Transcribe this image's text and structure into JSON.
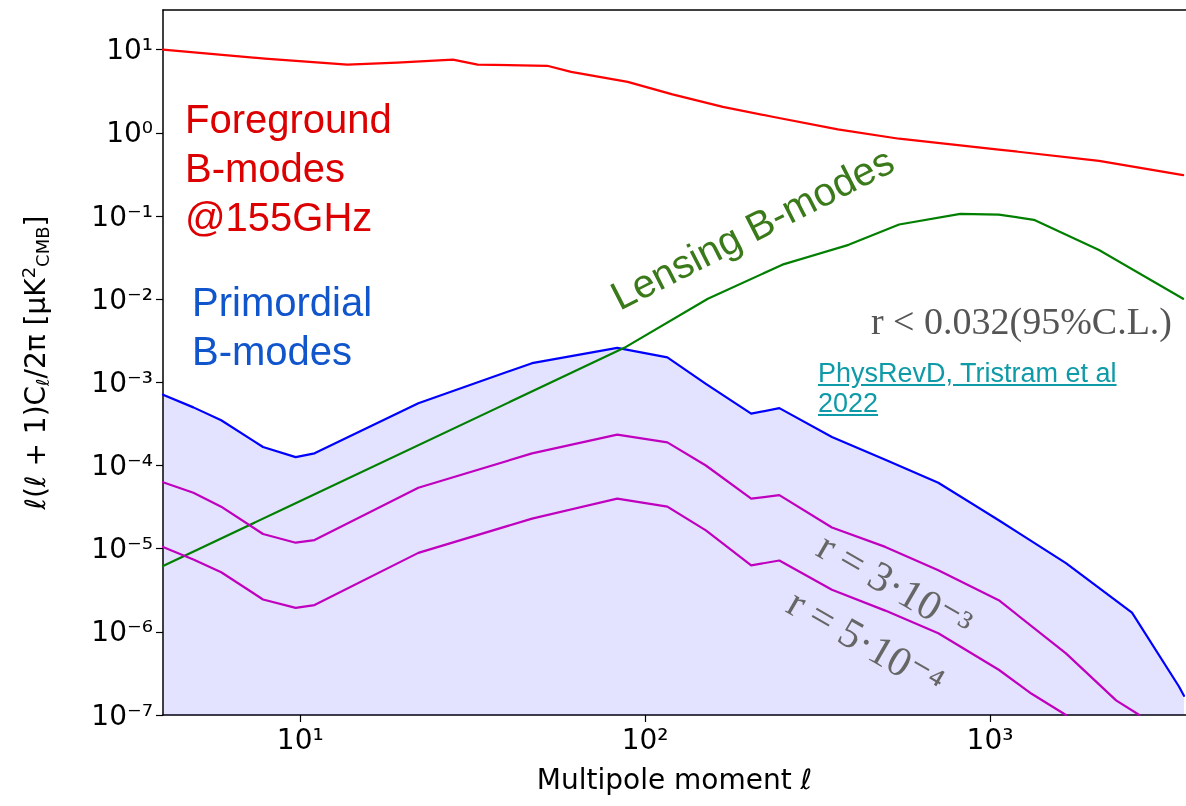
{
  "chart_data": {
    "type": "line",
    "xlabel": "Multipole moment ℓ",
    "ylabel": "ℓ(ℓ + 1)C$_{ℓ}$/2π [μK$^{2}$$_{CMB}$]",
    "log": "xy",
    "xlim": [
      4,
      3700
    ],
    "ylim": [
      1e-07,
      30
    ],
    "xticks": [
      {
        "value": 10,
        "label": "10¹"
      },
      {
        "value": 100,
        "label": "10²"
      },
      {
        "value": 1000,
        "label": "10³"
      }
    ],
    "yticks": [
      {
        "value": 1e-07,
        "label": "10⁻⁷"
      },
      {
        "value": 1e-06,
        "label": "10⁻⁶"
      },
      {
        "value": 1e-05,
        "label": "10⁻⁵"
      },
      {
        "value": 0.0001,
        "label": "10⁻⁴"
      },
      {
        "value": 0.001,
        "label": "10⁻³"
      },
      {
        "value": 0.01,
        "label": "10⁻²"
      },
      {
        "value": 0.1,
        "label": "10⁻¹"
      },
      {
        "value": 1,
        "label": "10⁰"
      },
      {
        "value": 10,
        "label": "10¹"
      }
    ],
    "grid": false,
    "legend": false,
    "marker": "none",
    "line_style": "solid",
    "annotations": [
      "r < 0.032(95%C.L.)",
      "PhysRevD, Tristram et al 2022"
    ],
    "series": [
      {
        "name": "Foreground B-modes @155GHz",
        "color": "#ff0000",
        "x": [
          4,
          7.9,
          13.7,
          19.1,
          27.7,
          32.7,
          52,
          61,
          89,
          120,
          168,
          234,
          362,
          545,
          1060,
          2070,
          3630
        ],
        "values": [
          10,
          7.8,
          6.6,
          7.0,
          7.6,
          6.6,
          6.4,
          5.4,
          4.1,
          2.9,
          2.05,
          1.56,
          1.1,
          0.85,
          0.63,
          0.46,
          0.31
        ]
      },
      {
        "name": "Lensing B-modes",
        "color": "#007f00",
        "x": [
          4,
          87,
          152,
          250,
          389,
          545,
          820,
          1060,
          1340,
          2070,
          3630
        ],
        "values": [
          6.2e-06,
          0.0026,
          0.0101,
          0.026,
          0.045,
          0.079,
          0.106,
          0.104,
          0.09,
          0.039,
          0.0101
        ]
      },
      {
        "name": "Primordial B-modes",
        "type": "area",
        "color": "#0000ff",
        "x": [
          4,
          4.9,
          5.9,
          7.8,
          9.7,
          11,
          22,
          47,
          83,
          116,
          150,
          203,
          245,
          348,
          497,
          708,
          1060,
          1660,
          2580,
          3530,
          3650
        ],
        "values": [
          0.00071,
          0.0005,
          0.00035,
          0.000167,
          0.000126,
          0.00014,
          0.00056,
          0.0017,
          0.0026,
          0.002,
          0.00096,
          0.00042,
          0.00049,
          0.00022,
          0.000117,
          6.2e-05,
          2.2e-05,
          6.7e-06,
          1.7e-06,
          2.2e-07,
          1.7e-07
        ]
      },
      {
        "name": "r = 3·10⁻³",
        "color": "#bf00bf",
        "x": [
          4,
          4.9,
          5.9,
          7.8,
          9.7,
          11,
          22,
          47,
          83,
          116,
          150,
          203,
          245,
          348,
          497,
          708,
          1060,
          1660,
          2320,
          2710
        ],
        "values": [
          6.3e-05,
          4.7e-05,
          3.2e-05,
          1.5e-05,
          1.18e-05,
          1.27e-05,
          5.4e-05,
          0.00014,
          0.000235,
          0.00019,
          0.0001,
          4e-05,
          4.4e-05,
          1.8e-05,
          1.05e-05,
          5.5e-06,
          2.4e-06,
          5.5e-07,
          1.5e-07,
          1e-07
        ]
      },
      {
        "name": "r = 5·10⁻⁴",
        "color": "#bf00bf",
        "x": [
          4,
          4.9,
          5.9,
          7.8,
          9.7,
          11,
          22,
          47,
          83,
          116,
          150,
          203,
          245,
          348,
          497,
          708,
          1060,
          1320,
          1660
        ],
        "values": [
          1.05e-05,
          7.4e-06,
          5.2e-06,
          2.45e-06,
          1.94e-06,
          2.1e-06,
          8.9e-06,
          2.3e-05,
          4e-05,
          3.2e-05,
          1.66e-05,
          6.3e-06,
          7.2e-06,
          3.2e-06,
          1.8e-06,
          9.6e-07,
          3.5e-07,
          1.8e-07,
          1e-07
        ]
      }
    ]
  }
}
